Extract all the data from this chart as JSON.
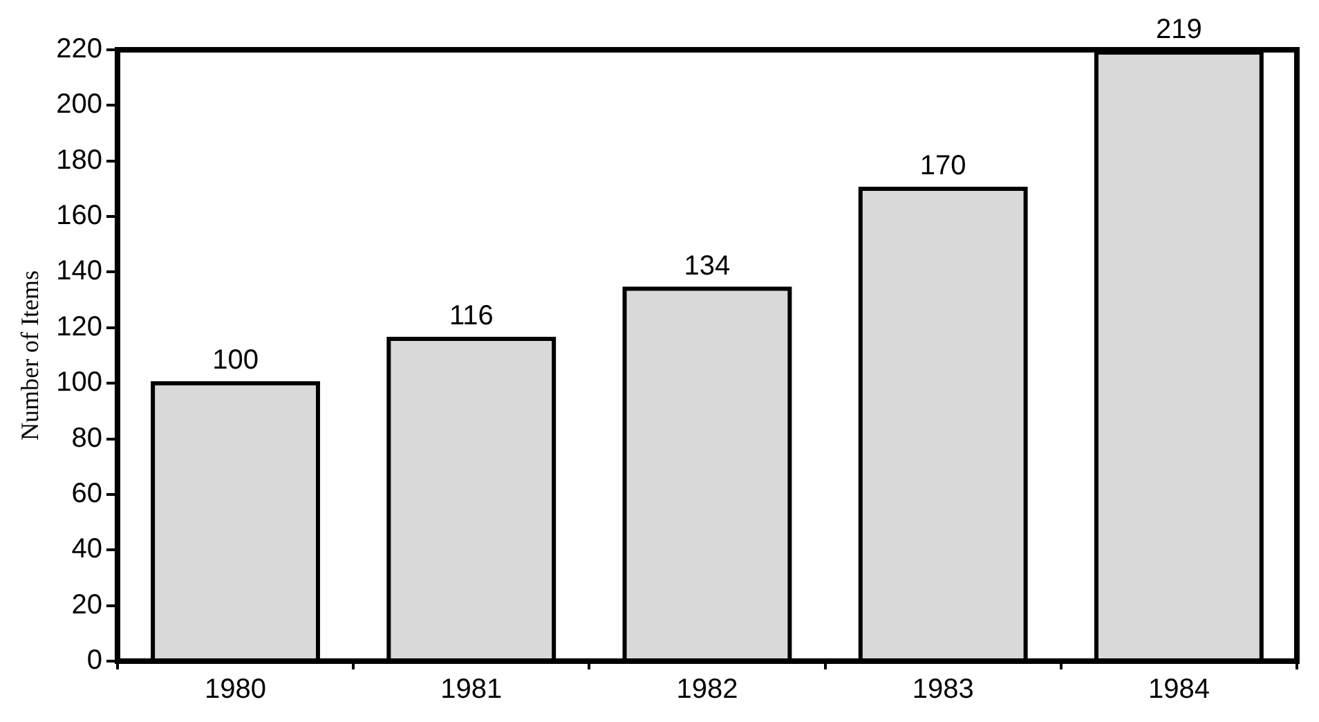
{
  "chart_data": {
    "type": "bar",
    "ylabel": "Number of Items",
    "categories": [
      "1980",
      "1981",
      "1982",
      "1983",
      "1984"
    ],
    "values": [
      100,
      116,
      134,
      170,
      219
    ],
    "color": "#d9d9d9",
    "ylim": [
      0,
      220
    ],
    "yticks": [
      0,
      20,
      40,
      60,
      80,
      100,
      120,
      140,
      160,
      180,
      200,
      220
    ],
    "data_labels": true
  }
}
